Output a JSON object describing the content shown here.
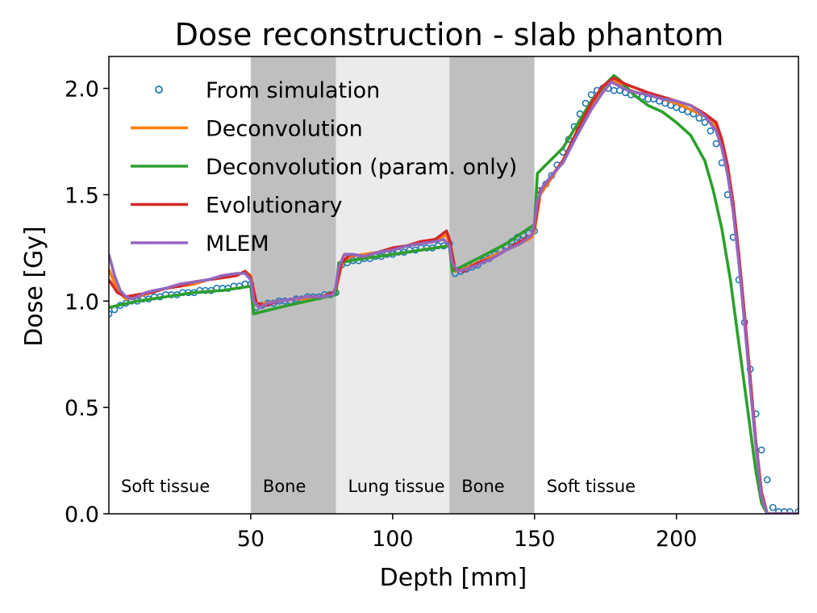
{
  "chart_data": {
    "type": "line",
    "title": "Dose reconstruction - slab phantom",
    "xlabel": "Depth [mm]",
    "ylabel": "Dose [Gy]",
    "xlim": [
      0,
      243
    ],
    "ylim": [
      0,
      2.15
    ],
    "xticks": [
      50,
      100,
      150,
      200
    ],
    "yticks": [
      0.0,
      0.5,
      1.0,
      1.5,
      2.0
    ],
    "xtick_labels": [
      "50",
      "100",
      "150",
      "200"
    ],
    "ytick_labels": [
      "0.0",
      "0.5",
      "1.0",
      "1.5",
      "2.0"
    ],
    "grid": false,
    "legend_position": "top-left",
    "regions": [
      {
        "label": "Soft tissue",
        "x0": 0,
        "x1": 50,
        "color": "#ffffff"
      },
      {
        "label": "Bone",
        "x0": 50,
        "x1": 80,
        "color": "#bfbfbf"
      },
      {
        "label": "Lung tissue",
        "x0": 80,
        "x1": 120,
        "color": "#ebebeb"
      },
      {
        "label": "Bone",
        "x0": 120,
        "x1": 150,
        "color": "#bfbfbf"
      },
      {
        "label": "Soft tissue",
        "x0": 150,
        "x1": 243,
        "color": "#ffffff"
      }
    ],
    "series": [
      {
        "name": "From simulation",
        "style": "markers",
        "color": "#1f77b4",
        "x": [
          0,
          2,
          4,
          6,
          8,
          10,
          12,
          14,
          16,
          18,
          20,
          22,
          24,
          26,
          28,
          30,
          32,
          34,
          36,
          38,
          40,
          42,
          44,
          46,
          48,
          50,
          52,
          54,
          56,
          58,
          60,
          62,
          64,
          66,
          68,
          70,
          72,
          74,
          76,
          78,
          80,
          82,
          84,
          86,
          88,
          90,
          92,
          94,
          96,
          98,
          100,
          102,
          104,
          106,
          108,
          110,
          112,
          114,
          116,
          118,
          120,
          122,
          124,
          126,
          128,
          130,
          132,
          134,
          136,
          138,
          140,
          142,
          144,
          146,
          148,
          150,
          152,
          154,
          156,
          158,
          160,
          162,
          164,
          166,
          168,
          170,
          172,
          174,
          176,
          178,
          180,
          182,
          184,
          186,
          188,
          190,
          192,
          194,
          196,
          198,
          200,
          202,
          204,
          206,
          208,
          210,
          212,
          214,
          216,
          218,
          220,
          222,
          224,
          226,
          228,
          230,
          232,
          234,
          236,
          238,
          240,
          243
        ],
        "y": [
          0.94,
          0.96,
          0.98,
          0.99,
          1.0,
          1.0,
          1.01,
          1.01,
          1.02,
          1.02,
          1.03,
          1.03,
          1.03,
          1.04,
          1.04,
          1.04,
          1.05,
          1.05,
          1.05,
          1.06,
          1.06,
          1.06,
          1.07,
          1.07,
          1.08,
          1.08,
          0.97,
          0.98,
          0.99,
          0.99,
          1.0,
          1.0,
          1.0,
          1.01,
          1.01,
          1.02,
          1.02,
          1.02,
          1.03,
          1.03,
          1.04,
          1.17,
          1.18,
          1.19,
          1.19,
          1.2,
          1.2,
          1.21,
          1.21,
          1.22,
          1.22,
          1.23,
          1.23,
          1.24,
          1.24,
          1.25,
          1.25,
          1.25,
          1.26,
          1.26,
          1.27,
          1.13,
          1.14,
          1.15,
          1.16,
          1.17,
          1.19,
          1.2,
          1.22,
          1.24,
          1.26,
          1.28,
          1.3,
          1.31,
          1.32,
          1.33,
          1.52,
          1.55,
          1.59,
          1.64,
          1.7,
          1.76,
          1.82,
          1.88,
          1.93,
          1.97,
          1.99,
          2.0,
          2.0,
          1.99,
          1.99,
          1.98,
          1.97,
          1.97,
          1.96,
          1.95,
          1.95,
          1.94,
          1.93,
          1.92,
          1.91,
          1.9,
          1.89,
          1.88,
          1.86,
          1.84,
          1.8,
          1.74,
          1.65,
          1.5,
          1.3,
          1.1,
          0.9,
          0.68,
          0.47,
          0.3,
          0.16,
          0.03,
          0.01,
          0.01,
          0.01,
          0.01
        ]
      },
      {
        "name": "Deconvolution",
        "style": "line",
        "color": "#ff7f0e",
        "x": [
          0,
          3,
          6,
          10,
          15,
          20,
          25,
          30,
          35,
          40,
          45,
          48,
          50,
          52,
          55,
          60,
          65,
          70,
          75,
          79,
          80,
          82,
          85,
          90,
          95,
          100,
          105,
          110,
          115,
          119,
          120,
          122,
          125,
          130,
          135,
          140,
          145,
          149,
          150,
          152,
          155,
          160,
          165,
          170,
          174,
          178,
          182,
          186,
          190,
          195,
          200,
          205,
          210,
          214,
          216,
          218,
          220,
          222,
          224,
          226,
          228,
          230,
          232,
          243
        ],
        "y": [
          1.15,
          1.05,
          1.01,
          1.02,
          1.04,
          1.06,
          1.07,
          1.08,
          1.1,
          1.11,
          1.12,
          1.14,
          1.12,
          0.98,
          0.99,
          1.0,
          1.01,
          1.01,
          1.02,
          1.04,
          1.05,
          1.17,
          1.21,
          1.22,
          1.23,
          1.24,
          1.26,
          1.27,
          1.29,
          1.31,
          1.27,
          1.14,
          1.15,
          1.18,
          1.21,
          1.24,
          1.27,
          1.3,
          1.33,
          1.5,
          1.56,
          1.66,
          1.79,
          1.92,
          2.0,
          2.04,
          2.0,
          1.98,
          1.97,
          1.95,
          1.93,
          1.9,
          1.87,
          1.82,
          1.75,
          1.62,
          1.44,
          1.2,
          0.92,
          0.62,
          0.33,
          0.1,
          0.0,
          0.0
        ]
      },
      {
        "name": "Deconvolution (param. only)",
        "style": "line",
        "color": "#2ca02c",
        "x": [
          0,
          10,
          20,
          30,
          40,
          50,
          51,
          60,
          70,
          80,
          81,
          90,
          100,
          110,
          120,
          121,
          130,
          140,
          150,
          151,
          160,
          165,
          170,
          175,
          178,
          180,
          185,
          190,
          195,
          200,
          205,
          210,
          213,
          216,
          219,
          222,
          225,
          228,
          230,
          232,
          243
        ],
        "y": [
          0.97,
          1.0,
          1.02,
          1.04,
          1.05,
          1.07,
          0.94,
          0.97,
          1.0,
          1.03,
          1.18,
          1.2,
          1.22,
          1.24,
          1.26,
          1.14,
          1.2,
          1.27,
          1.36,
          1.6,
          1.72,
          1.83,
          1.94,
          2.02,
          2.06,
          2.04,
          1.97,
          1.92,
          1.89,
          1.84,
          1.78,
          1.66,
          1.52,
          1.34,
          1.1,
          0.8,
          0.5,
          0.2,
          0.05,
          0.0,
          0.0
        ]
      },
      {
        "name": "Evolutionary",
        "style": "line",
        "color": "#d62728",
        "x": [
          0,
          3,
          6,
          10,
          15,
          20,
          25,
          30,
          35,
          40,
          45,
          48,
          50,
          52,
          55,
          60,
          65,
          70,
          75,
          79,
          80,
          82,
          85,
          90,
          95,
          100,
          105,
          110,
          115,
          119,
          120,
          122,
          125,
          130,
          135,
          140,
          145,
          149,
          150,
          152,
          155,
          160,
          165,
          170,
          174,
          178,
          182,
          186,
          190,
          195,
          200,
          205,
          210,
          214,
          216,
          218,
          220,
          222,
          224,
          226,
          228,
          230,
          232,
          243
        ],
        "y": [
          1.1,
          1.04,
          1.02,
          1.03,
          1.04,
          1.06,
          1.07,
          1.09,
          1.1,
          1.11,
          1.12,
          1.14,
          1.11,
          0.99,
          0.98,
          1.0,
          1.01,
          1.02,
          1.02,
          1.04,
          1.06,
          1.18,
          1.22,
          1.21,
          1.23,
          1.25,
          1.26,
          1.28,
          1.29,
          1.33,
          1.29,
          1.15,
          1.14,
          1.18,
          1.2,
          1.24,
          1.28,
          1.31,
          1.35,
          1.52,
          1.57,
          1.66,
          1.8,
          1.93,
          2.01,
          2.05,
          2.02,
          2.0,
          1.98,
          1.96,
          1.94,
          1.92,
          1.88,
          1.84,
          1.76,
          1.64,
          1.46,
          1.22,
          0.94,
          0.64,
          0.34,
          0.1,
          0.0,
          0.0
        ]
      },
      {
        "name": "MLEM",
        "style": "line",
        "color": "#9467bd",
        "x": [
          0,
          2,
          4,
          6,
          8,
          10,
          13,
          16,
          20,
          25,
          30,
          35,
          40,
          45,
          48,
          50,
          51,
          53,
          56,
          60,
          65,
          70,
          75,
          79,
          80,
          81,
          83,
          86,
          90,
          95,
          100,
          105,
          110,
          115,
          118,
          120,
          121,
          123,
          126,
          130,
          135,
          140,
          145,
          149,
          150,
          151,
          153,
          156,
          160,
          165,
          170,
          174,
          177,
          180,
          183,
          186,
          190,
          195,
          200,
          205,
          210,
          214,
          216,
          218,
          220,
          222,
          224,
          226,
          228,
          230,
          232,
          243
        ],
        "y": [
          1.22,
          1.12,
          1.05,
          1.02,
          1.01,
          1.02,
          1.04,
          1.05,
          1.06,
          1.08,
          1.09,
          1.1,
          1.12,
          1.13,
          1.13,
          1.1,
          1.0,
          0.97,
          0.99,
          1.0,
          1.01,
          1.02,
          1.02,
          1.03,
          1.07,
          1.16,
          1.22,
          1.22,
          1.21,
          1.23,
          1.24,
          1.26,
          1.27,
          1.28,
          1.29,
          1.26,
          1.18,
          1.14,
          1.15,
          1.17,
          1.2,
          1.24,
          1.27,
          1.31,
          1.37,
          1.47,
          1.54,
          1.59,
          1.65,
          1.78,
          1.9,
          1.98,
          2.03,
          2.01,
          1.99,
          1.98,
          1.97,
          1.95,
          1.94,
          1.92,
          1.87,
          1.8,
          1.72,
          1.6,
          1.42,
          1.18,
          0.9,
          0.6,
          0.32,
          0.08,
          0.0,
          0.0
        ]
      }
    ]
  }
}
